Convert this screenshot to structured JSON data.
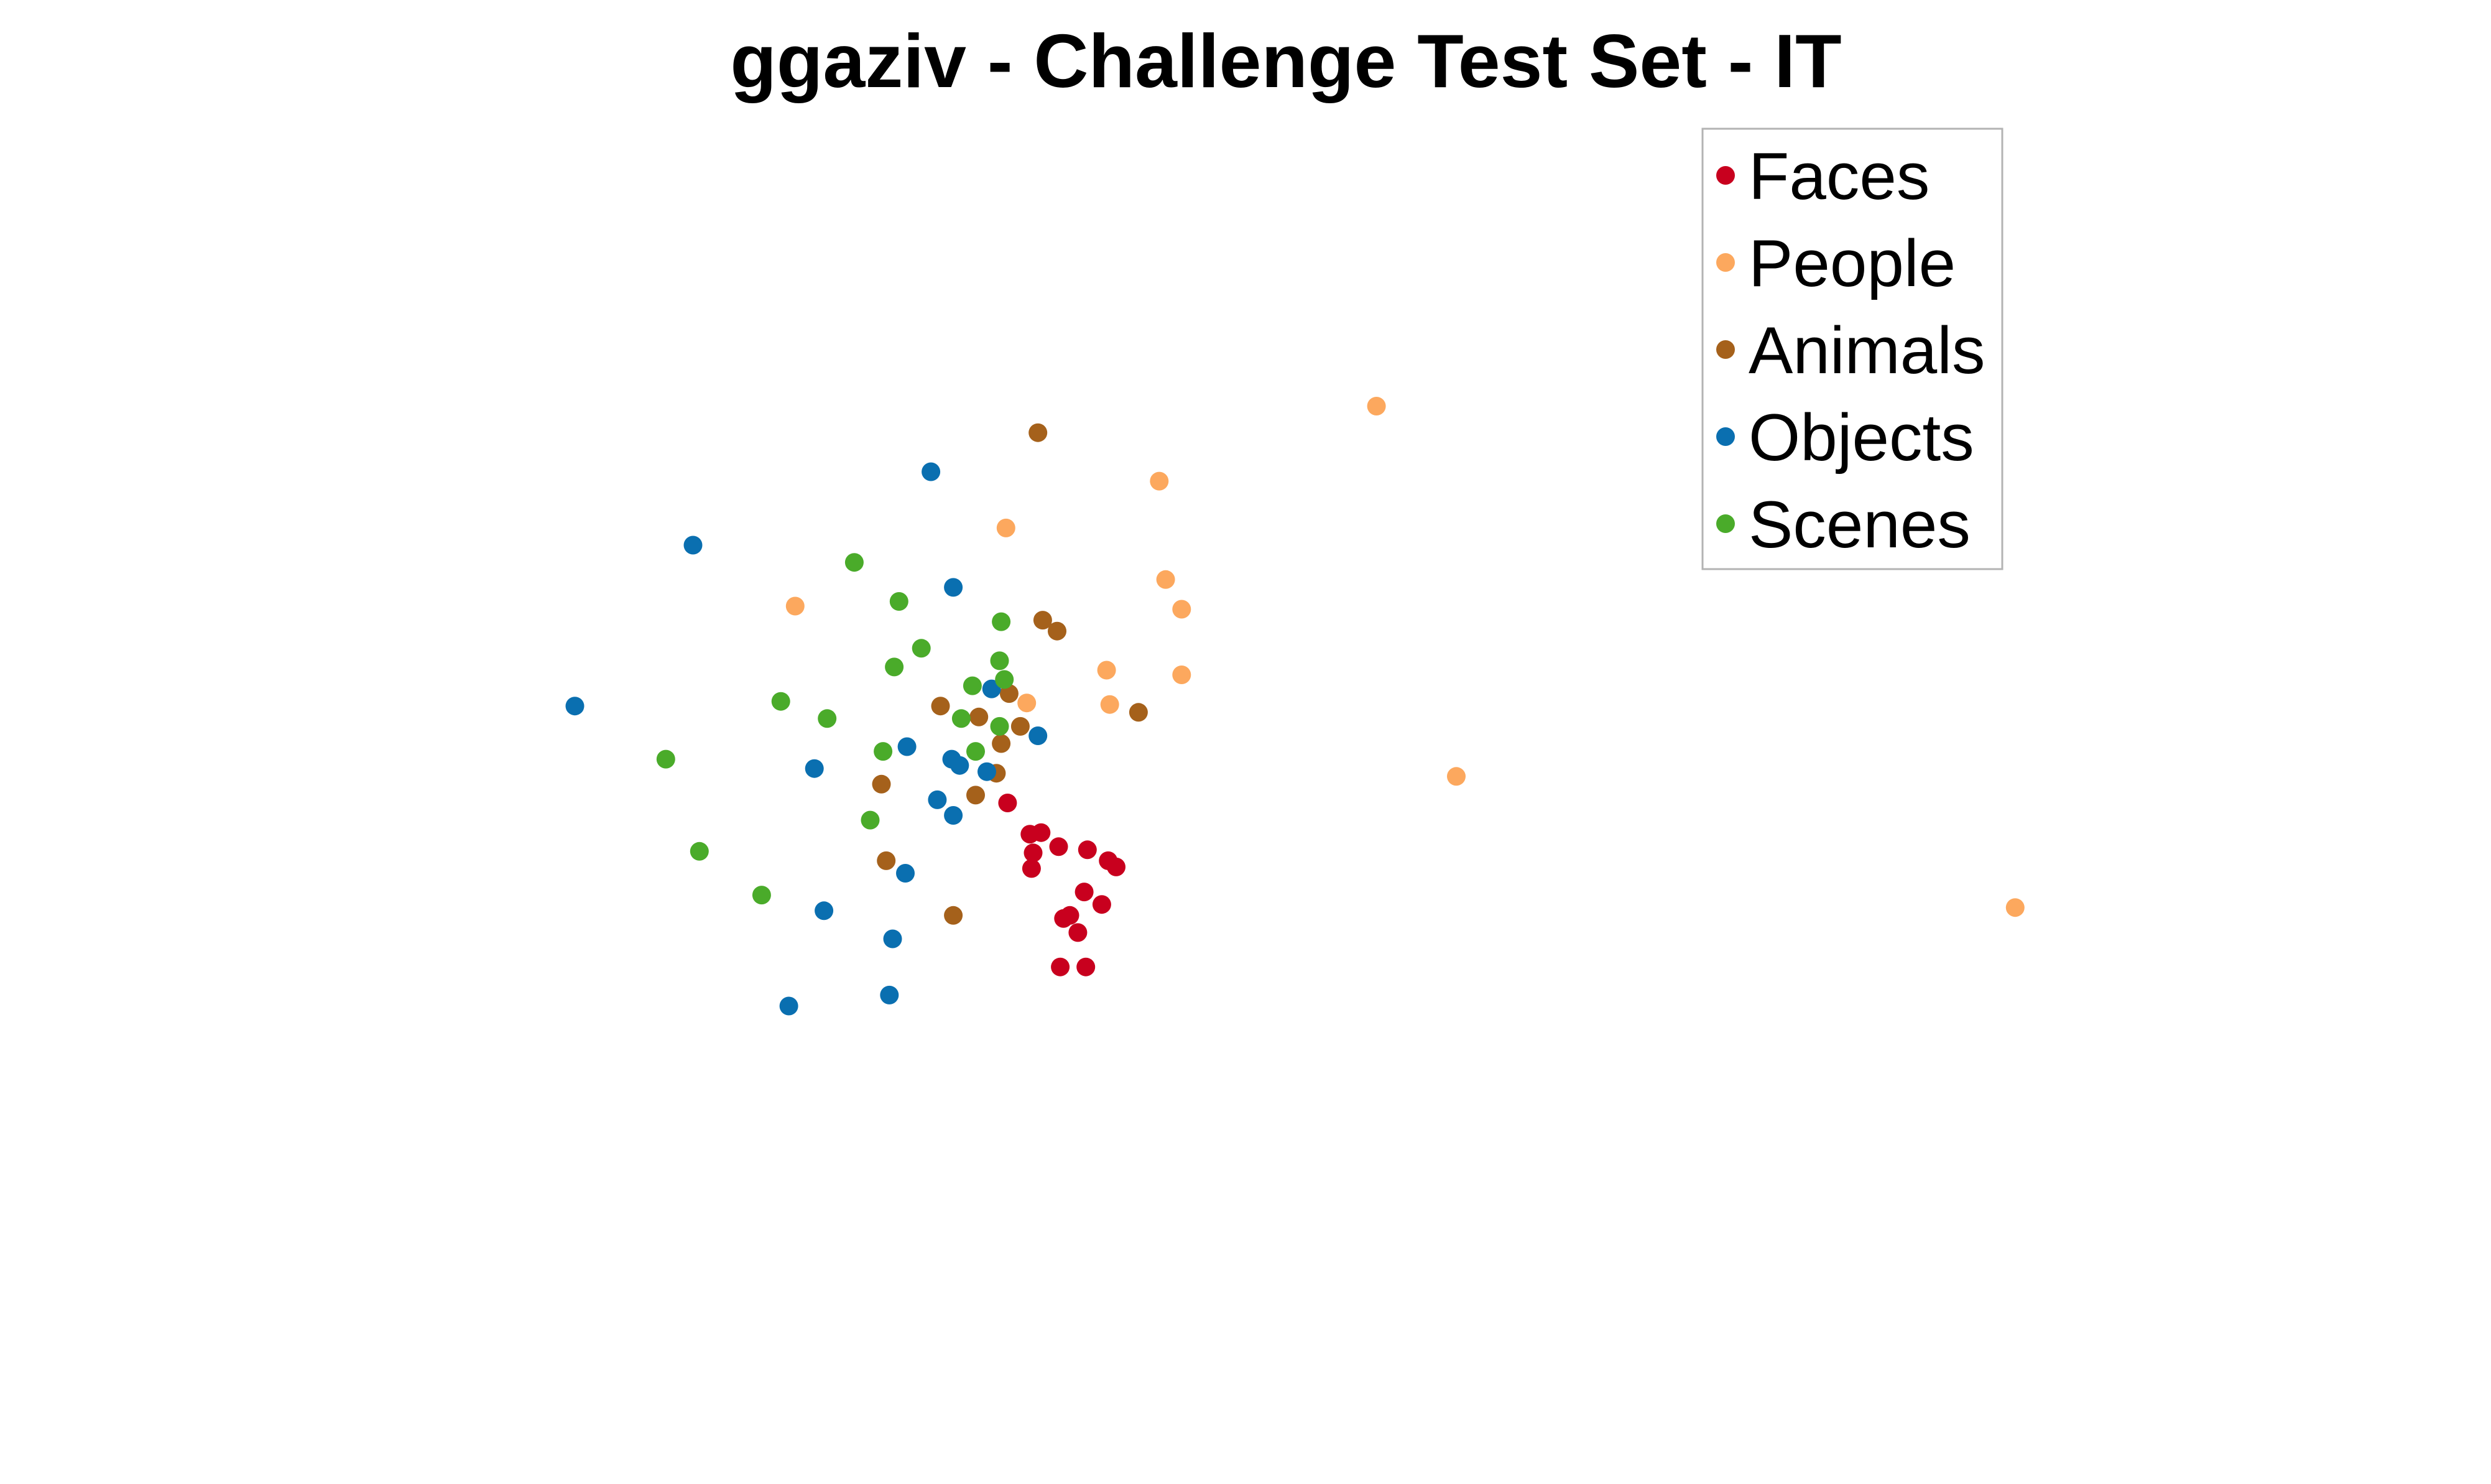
{
  "chart_data": {
    "type": "scatter",
    "title": "ggaziv - Challenge Test Set - IT",
    "axes_visible": false,
    "grid": false,
    "legend_position": "top-right",
    "xlim": [
      0,
      1560
    ],
    "ylim": [
      950,
      0
    ],
    "series": [
      {
        "name": "Faces",
        "color": "#c8001e",
        "points": [
          [
            631,
            514
          ],
          [
            645,
            534
          ],
          [
            652,
            533
          ],
          [
            663,
            542
          ],
          [
            647,
            546
          ],
          [
            646,
            556
          ],
          [
            681,
            544
          ],
          [
            694,
            551
          ],
          [
            699,
            555
          ],
          [
            679,
            571
          ],
          [
            690,
            579
          ],
          [
            670,
            586
          ],
          [
            666,
            588
          ],
          [
            675,
            597
          ],
          [
            664,
            619
          ],
          [
            680,
            619
          ]
        ]
      },
      {
        "name": "People",
        "color": "#fca85e",
        "points": [
          [
            862,
            260
          ],
          [
            726,
            308
          ],
          [
            630,
            338
          ],
          [
            498,
            388
          ],
          [
            730,
            371
          ],
          [
            740,
            390
          ],
          [
            693,
            429
          ],
          [
            740,
            432
          ],
          [
            643,
            450
          ],
          [
            695,
            451
          ],
          [
            912,
            497
          ],
          [
            1262,
            581
          ]
        ]
      },
      {
        "name": "Animals",
        "color": "#a5611b",
        "points": [
          [
            650,
            277
          ],
          [
            653,
            397
          ],
          [
            662,
            404
          ],
          [
            632,
            444
          ],
          [
            589,
            452
          ],
          [
            613,
            459
          ],
          [
            713,
            456
          ],
          [
            639,
            465
          ],
          [
            627,
            476
          ],
          [
            624,
            495
          ],
          [
            552,
            502
          ],
          [
            611,
            509
          ],
          [
            555,
            551
          ],
          [
            597,
            586
          ]
        ]
      },
      {
        "name": "Objects",
        "color": "#0a6fb0",
        "points": [
          [
            583,
            302
          ],
          [
            434,
            349
          ],
          [
            597,
            376
          ],
          [
            360,
            452
          ],
          [
            621,
            441
          ],
          [
            650,
            471
          ],
          [
            568,
            478
          ],
          [
            596,
            486
          ],
          [
            601,
            490
          ],
          [
            510,
            492
          ],
          [
            618,
            494
          ],
          [
            587,
            512
          ],
          [
            597,
            522
          ],
          [
            567,
            559
          ],
          [
            516,
            583
          ],
          [
            559,
            601
          ],
          [
            557,
            637
          ],
          [
            494,
            644
          ]
        ]
      },
      {
        "name": "Scenes",
        "color": "#4aab2a",
        "points": [
          [
            535,
            360
          ],
          [
            563,
            385
          ],
          [
            627,
            398
          ],
          [
            577,
            415
          ],
          [
            560,
            427
          ],
          [
            626,
            423
          ],
          [
            629,
            435
          ],
          [
            609,
            439
          ],
          [
            489,
            449
          ],
          [
            518,
            460
          ],
          [
            602,
            460
          ],
          [
            626,
            465
          ],
          [
            553,
            481
          ],
          [
            611,
            481
          ],
          [
            417,
            486
          ],
          [
            545,
            525
          ],
          [
            438,
            545
          ],
          [
            477,
            573
          ]
        ]
      }
    ]
  }
}
